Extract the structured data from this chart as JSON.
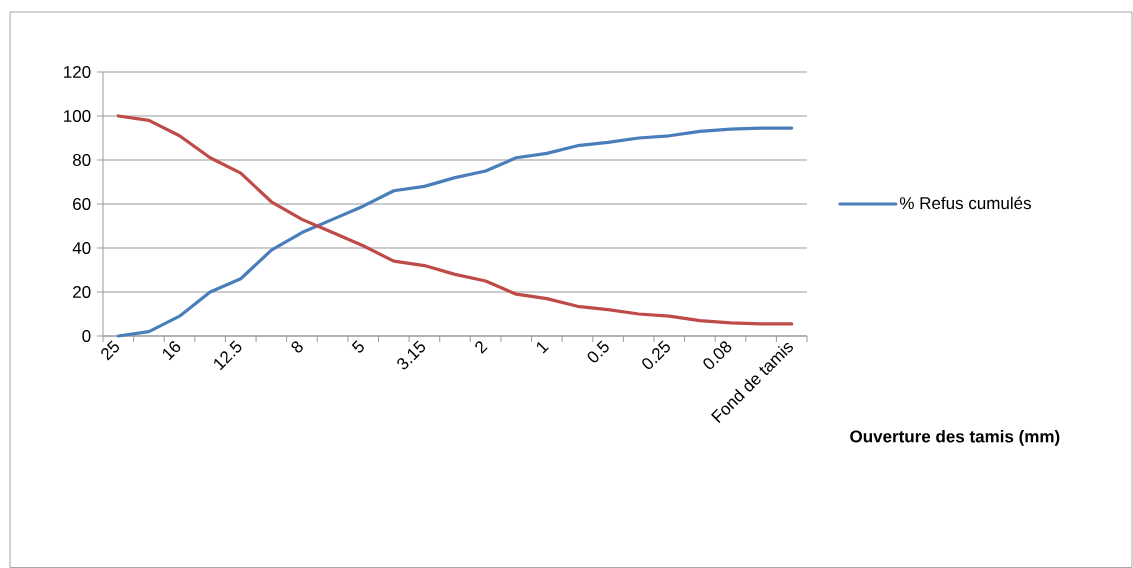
{
  "chart_data": {
    "type": "line",
    "xlabel": "Ouverture des tamis (mm)",
    "categories": [
      "25",
      null,
      "16",
      null,
      "12.5",
      null,
      "8",
      null,
      "5",
      null,
      "3.15",
      null,
      "2",
      null,
      "1",
      null,
      "0.5",
      null,
      "0.25",
      null,
      "0.08",
      null,
      "Fond de tamis"
    ],
    "series": [
      {
        "name": "% Refus cumulés",
        "color": "#4a7ebb",
        "values": [
          0,
          2,
          9,
          20,
          26,
          39,
          47,
          53,
          59,
          66,
          68,
          72,
          75,
          81,
          83,
          86.5,
          88,
          90,
          91,
          93,
          94,
          94.5,
          94.5
        ]
      },
      {
        "color": "#be4b48",
        "values": [
          100,
          98,
          91,
          81,
          74,
          61,
          53,
          47,
          41,
          34,
          32,
          28,
          25,
          19,
          17,
          13.5,
          12,
          10,
          9,
          7,
          6,
          5.5,
          5.5
        ]
      }
    ],
    "ylim": [
      0,
      120
    ],
    "yticks": [
      0,
      20,
      40,
      60,
      80,
      100,
      120
    ],
    "grid": "y",
    "legend": "right",
    "marker": "none",
    "line_style": "solid"
  }
}
